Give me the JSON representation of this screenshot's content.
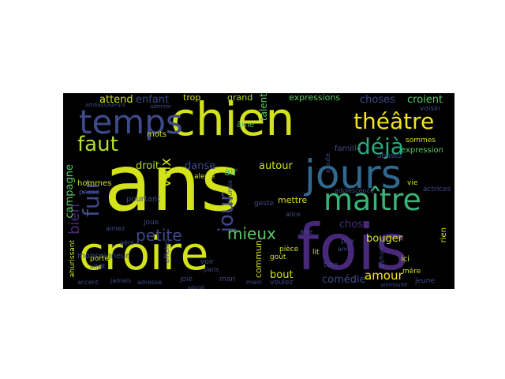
{
  "words": [
    {
      "text": "ans",
      "color": "#d2e21b"
    },
    {
      "text": "chien",
      "color": "#d2e21b"
    },
    {
      "text": "croire",
      "color": "#d2e21b"
    },
    {
      "text": "fois",
      "color": "#482878"
    },
    {
      "text": "jours",
      "color": "#31688e"
    },
    {
      "text": "temps",
      "color": "#3e4a89"
    },
    {
      "text": "maître",
      "color": "#3ab37a"
    },
    {
      "text": "théâtre",
      "color": "#f2e51d"
    },
    {
      "text": "faut",
      "color": "#b2dd2d"
    },
    {
      "text": "déjà",
      "color": "#26ad81"
    },
    {
      "text": "fuir",
      "color": "#3e4a89"
    },
    {
      "text": "jour",
      "color": "#3e4a89"
    },
    {
      "text": "mieux",
      "color": "#5ac864"
    },
    {
      "text": "petite",
      "color": "#3f4889"
    },
    {
      "text": "voix",
      "color": "#d2e21b"
    },
    {
      "text": "amour",
      "color": "#fde725"
    },
    {
      "text": "choses",
      "color": "#3e4a89"
    },
    {
      "text": "croient",
      "color": "#5ac864"
    },
    {
      "text": "attend",
      "color": "#d2e21b"
    },
    {
      "text": "enfant",
      "color": "#3e4a89"
    },
    {
      "text": "trop",
      "color": "#d2e21b"
    },
    {
      "text": "grand",
      "color": "#b2dd2d"
    },
    {
      "text": "talent",
      "color": "#5ac864"
    },
    {
      "text": "expressions",
      "color": "#5ac864"
    },
    {
      "text": "bien",
      "color": "#482878"
    },
    {
      "text": "campagne",
      "color": "#5ac864"
    },
    {
      "text": "droit",
      "color": "#b2dd2d"
    },
    {
      "text": "danse",
      "color": "#3e4a89"
    },
    {
      "text": "air",
      "color": "#35b779"
    },
    {
      "text": "autour",
      "color": "#d2e21b"
    },
    {
      "text": "bouger",
      "color": "#d2e21b"
    },
    {
      "text": "chose",
      "color": "#472d7b"
    },
    {
      "text": "comédie",
      "color": "#3e4a89"
    },
    {
      "text": "bout",
      "color": "#d2e21b"
    },
    {
      "text": "mettre",
      "color": "#d2e21b"
    },
    {
      "text": "commun",
      "color": "#d2e21b"
    },
    {
      "text": "monseigneur",
      "color": "#3e4a89"
    },
    {
      "text": "pourtant",
      "color": "#3e4a89"
    },
    {
      "text": "hommes",
      "color": "#d2e21b"
    },
    {
      "text": "mots",
      "color": "#d2e21b"
    },
    {
      "text": "âme",
      "color": "#5ac864"
    },
    {
      "text": "famille",
      "color": "#3e4a89"
    },
    {
      "text": "expression",
      "color": "#5ac864"
    },
    {
      "text": "sommes",
      "color": "#d2e21b"
    },
    {
      "text": "voisin",
      "color": "#3e4a89"
    },
    {
      "text": "abusez",
      "color": "#3e4a89"
    },
    {
      "text": "vie",
      "color": "#d2e21b"
    },
    {
      "text": "actrices",
      "color": "#3e4a89"
    },
    {
      "text": "rien",
      "color": "#d2e21b"
    },
    {
      "text": "ici",
      "color": "#d2e21b"
    },
    {
      "text": "mère",
      "color": "#d2e21b"
    },
    {
      "text": "jeune",
      "color": "#3e4a89"
    },
    {
      "text": "pièce",
      "color": "#d2e21b"
    },
    {
      "text": "geste",
      "color": "#3e4a89"
    },
    {
      "text": "alerte",
      "color": "#d2e21b"
    },
    {
      "text": "joue",
      "color": "#3e4a89"
    },
    {
      "text": "aimez",
      "color": "#3e4a89"
    },
    {
      "text": "père",
      "color": "#3e4a89"
    },
    {
      "text": "porte",
      "color": "#d2e21b"
    },
    {
      "text": "voir",
      "color": "#3e4a89"
    },
    {
      "text": "paris",
      "color": "#3e4a89"
    },
    {
      "text": "mari",
      "color": "#3e4a89"
    },
    {
      "text": "main",
      "color": "#3e4a89"
    },
    {
      "text": "voulez",
      "color": "#3e4a89"
    },
    {
      "text": "joie",
      "color": "#3e4a89"
    },
    {
      "text": "adresse",
      "color": "#3e4a89"
    },
    {
      "text": "jamais",
      "color": "#3e4a89"
    },
    {
      "text": "accent",
      "color": "#3e4a89"
    },
    {
      "text": "allait",
      "color": "#3e4a89"
    },
    {
      "text": "adorait",
      "color": "#3e4a89"
    },
    {
      "text": "affiches",
      "color": "#3e4a89"
    },
    {
      "text": "goût",
      "color": "#d2e21b"
    },
    {
      "text": "lit",
      "color": "#d2e21b"
    },
    {
      "text": "tête",
      "color": "#3e4a89"
    },
    {
      "text": "ami",
      "color": "#3e4a89"
    },
    {
      "text": "prix",
      "color": "#3e4a89"
    },
    {
      "text": "alice",
      "color": "#3e4a89"
    },
    {
      "text": "aise",
      "color": "#3e4a89"
    },
    {
      "text": "alphonse",
      "color": "#3e4a89"
    },
    {
      "text": "adolescence",
      "color": "#3e4a89"
    },
    {
      "text": "ambassadeurs",
      "color": "#3e4a89"
    },
    {
      "text": "admirer",
      "color": "#3e4a89"
    },
    {
      "text": "passe",
      "color": "#3e4a89"
    },
    {
      "text": "ahurissant",
      "color": "#d2e21b"
    },
    {
      "text": "ajoute",
      "color": "#3e4a89"
    },
    {
      "text": "alourdie",
      "color": "#3e4a89"
    },
    {
      "text": "animosité",
      "color": "#3e4a89"
    }
  ]
}
